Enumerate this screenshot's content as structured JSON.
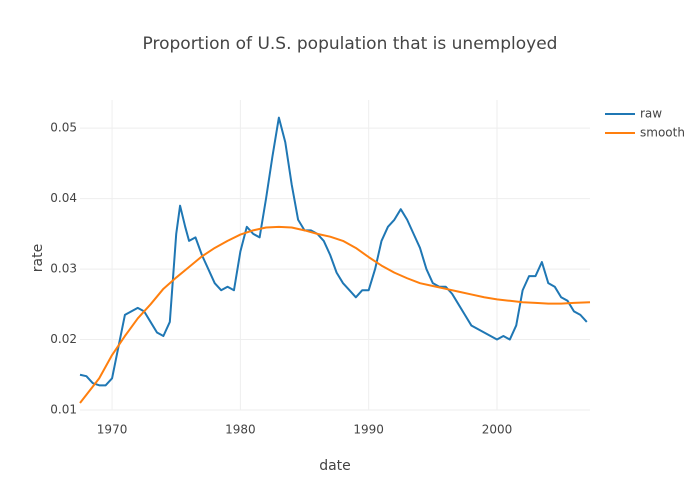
{
  "chart_data": {
    "type": "line",
    "title": "Proportion of U.S. population that is unemployed",
    "x_label": "date",
    "y_label": "rate",
    "xlim": [
      1967.5,
      2007.25
    ],
    "ylim": [
      0.01,
      0.054
    ],
    "xticks": [
      1970,
      1980,
      1990,
      2000
    ],
    "yticks": [
      0.01,
      0.02,
      0.03,
      0.04,
      0.05
    ],
    "grid": true,
    "legend": "right",
    "series": [
      {
        "name": "raw",
        "color": "#1f77b4",
        "x": [
          1967.5,
          1968,
          1968.5,
          1969,
          1969.5,
          1970,
          1970.5,
          1971,
          1971.5,
          1972,
          1972.5,
          1973,
          1973.5,
          1974,
          1974.5,
          1975,
          1975.3,
          1975.7,
          1976,
          1976.5,
          1977,
          1977.5,
          1978,
          1978.5,
          1979,
          1979.5,
          1980,
          1980.5,
          1981,
          1981.5,
          1982,
          1982.5,
          1983,
          1983.5,
          1984,
          1984.5,
          1985,
          1985.5,
          1986,
          1986.5,
          1987,
          1987.5,
          1988,
          1988.5,
          1989,
          1989.5,
          1990,
          1990.5,
          1991,
          1991.5,
          1992,
          1992.5,
          1993,
          1993.5,
          1994,
          1994.5,
          1995,
          1995.5,
          1996,
          1996.5,
          1997,
          1997.5,
          1998,
          1998.5,
          1999,
          1999.5,
          2000,
          2000.5,
          2001,
          2001.5,
          2002,
          2002.5,
          2003,
          2003.5,
          2004,
          2004.5,
          2005,
          2005.5,
          2006,
          2006.5,
          2007
        ],
        "values": [
          0.015,
          0.0148,
          0.0138,
          0.0135,
          0.0135,
          0.0145,
          0.019,
          0.0235,
          0.024,
          0.0245,
          0.024,
          0.0225,
          0.021,
          0.0205,
          0.0225,
          0.035,
          0.039,
          0.036,
          0.034,
          0.0345,
          0.032,
          0.03,
          0.028,
          0.027,
          0.0275,
          0.027,
          0.0325,
          0.036,
          0.035,
          0.0345,
          0.04,
          0.046,
          0.0515,
          0.048,
          0.042,
          0.037,
          0.0355,
          0.0355,
          0.035,
          0.034,
          0.032,
          0.0295,
          0.028,
          0.027,
          0.026,
          0.027,
          0.027,
          0.03,
          0.034,
          0.036,
          0.037,
          0.0385,
          0.037,
          0.035,
          0.033,
          0.03,
          0.028,
          0.0275,
          0.0275,
          0.0265,
          0.025,
          0.0235,
          0.022,
          0.0215,
          0.021,
          0.0205,
          0.02,
          0.0205,
          0.02,
          0.022,
          0.027,
          0.029,
          0.029,
          0.031,
          0.028,
          0.0275,
          0.026,
          0.0255,
          0.024,
          0.0235,
          0.0225
        ]
      },
      {
        "name": "smooth",
        "color": "#ff7f0e",
        "x": [
          1967.5,
          1969,
          1970,
          1971,
          1972,
          1973,
          1974,
          1975,
          1976,
          1977,
          1978,
          1979,
          1980,
          1981,
          1982,
          1983,
          1984,
          1985,
          1986,
          1987,
          1988,
          1989,
          1990,
          1991,
          1992,
          1993,
          1994,
          1995,
          1996,
          1997,
          1998,
          1999,
          2000,
          2001,
          2002,
          2003,
          2004,
          2005,
          2006,
          2007.25
        ],
        "values": [
          0.011,
          0.0145,
          0.0178,
          0.0205,
          0.023,
          0.025,
          0.0272,
          0.0288,
          0.0303,
          0.0318,
          0.033,
          0.034,
          0.0349,
          0.0355,
          0.0359,
          0.036,
          0.0359,
          0.0355,
          0.035,
          0.0346,
          0.034,
          0.033,
          0.0317,
          0.0305,
          0.0295,
          0.0287,
          0.028,
          0.0276,
          0.0272,
          0.0268,
          0.0264,
          0.026,
          0.0257,
          0.0255,
          0.0253,
          0.0252,
          0.0251,
          0.0251,
          0.0252,
          0.0253
        ]
      }
    ]
  }
}
